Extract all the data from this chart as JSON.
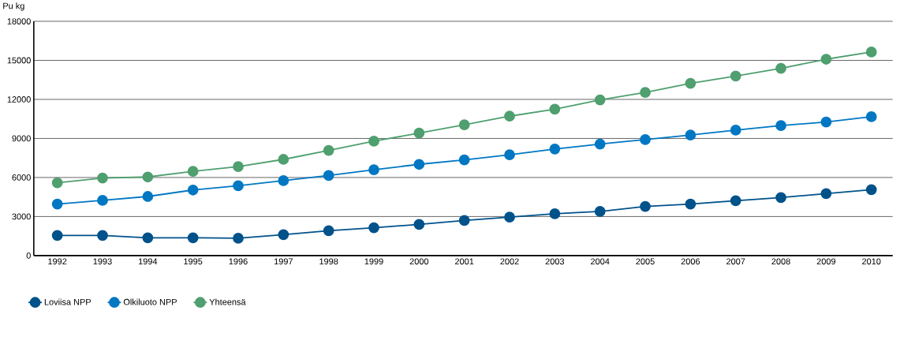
{
  "chart_data": {
    "type": "line",
    "ylabel": "Pu kg",
    "categories": [
      "1992",
      "1993",
      "1994",
      "1995",
      "1996",
      "1997",
      "1998",
      "1999",
      "2000",
      "2001",
      "2002",
      "2003",
      "2004",
      "2005",
      "2006",
      "2007",
      "2008",
      "2009",
      "2010"
    ],
    "series": [
      {
        "name": "Loviisa NPP",
        "color": "#00528b",
        "values": [
          1550,
          1550,
          1370,
          1370,
          1330,
          1610,
          1910,
          2140,
          2400,
          2700,
          2950,
          3210,
          3390,
          3770,
          3960,
          4220,
          4460,
          4760,
          5060
        ]
      },
      {
        "name": "Olkiluoto NPP",
        "color": "#0077c3",
        "values": [
          3960,
          4240,
          4540,
          5040,
          5360,
          5760,
          6150,
          6600,
          7010,
          7350,
          7740,
          8190,
          8570,
          8910,
          9260,
          9640,
          9990,
          10260,
          10670
        ]
      },
      {
        "name": "Yhteensä",
        "color": "#4f9f6f",
        "values": [
          5590,
          5960,
          6040,
          6470,
          6840,
          7390,
          8080,
          8790,
          9410,
          10050,
          10710,
          11250,
          11960,
          12540,
          13240,
          13800,
          14380,
          15090,
          15640
        ]
      }
    ],
    "ylim": [
      0,
      18000
    ],
    "yticks": [
      0,
      3000,
      6000,
      9000,
      12000,
      15000,
      18000
    ],
    "grid": "y",
    "legend": "bottom left",
    "marker": "circle",
    "line_style": "solid"
  }
}
